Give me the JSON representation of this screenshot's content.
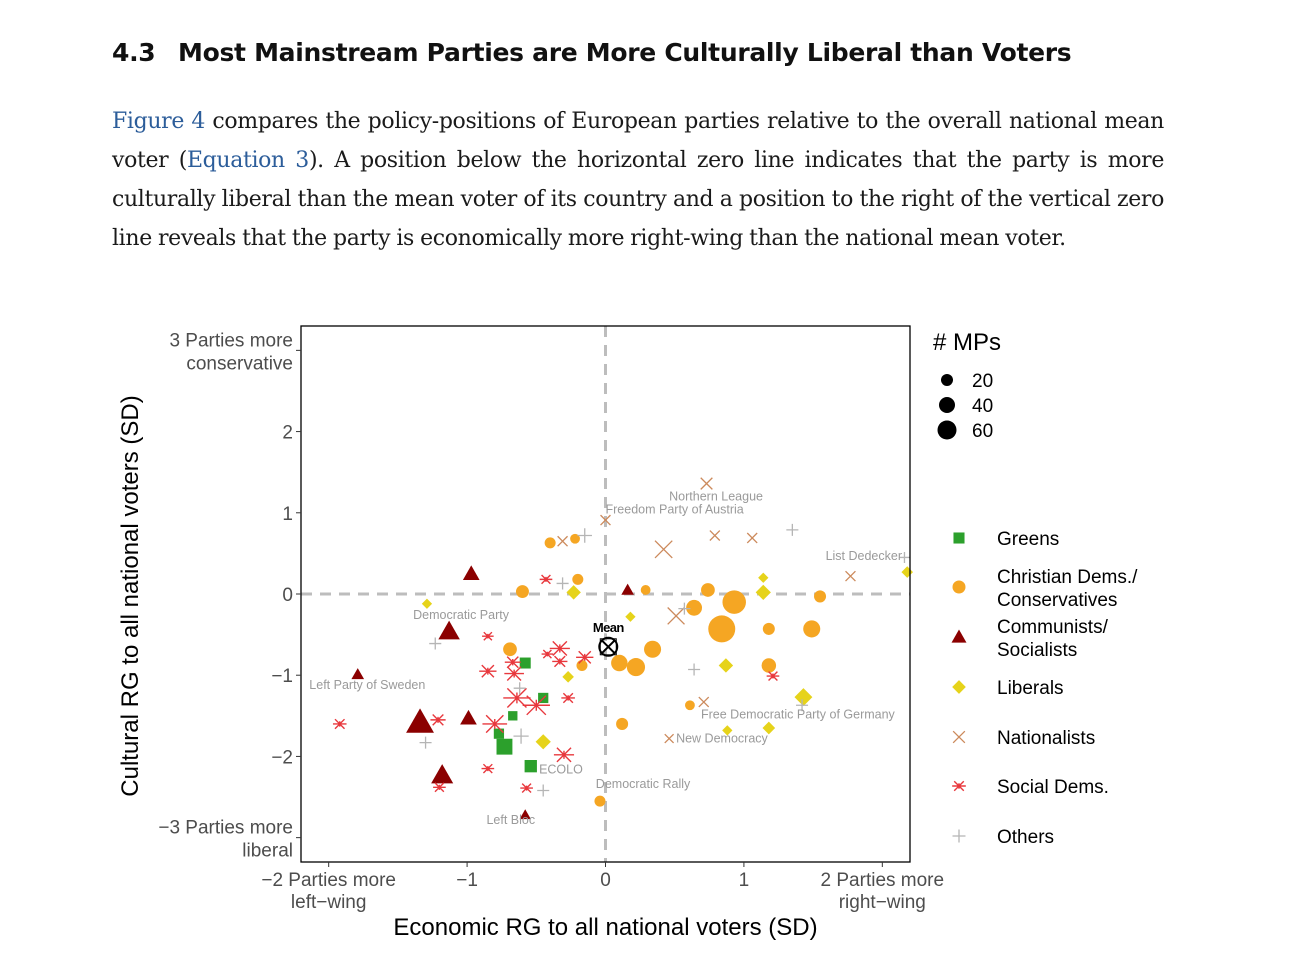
{
  "section": {
    "number": "4.3",
    "title": "Most Mainstream Parties are More Culturally Liberal than Voters"
  },
  "paragraph": {
    "figure_ref": "Figure 4",
    "part1": " compares the policy-positions of European parties relative to the overall national mean voter (",
    "equation_ref": "Equation 3",
    "part2": "). A position below the horizontal zero line indicates that the party is more culturally liberal than the mean voter of its country and a position to the right of the vertical zero line reveals that the party is economically more right-wing than the national mean voter."
  },
  "chart_data": {
    "type": "scatter",
    "xlabel": "Economic RG to all national voters (SD)",
    "ylabel": "Cultural RG to all national voters (SD)",
    "xlim": [
      -2.2,
      2.2
    ],
    "ylim": [
      -3.3,
      3.3
    ],
    "x_ticks": [
      {
        "value": -2,
        "lines": [
          "−2 Parties more",
          "left−wing"
        ]
      },
      {
        "value": -1,
        "lines": [
          "−1"
        ]
      },
      {
        "value": 0,
        "lines": [
          "0"
        ]
      },
      {
        "value": 1,
        "lines": [
          "1"
        ]
      },
      {
        "value": 2,
        "lines": [
          "2 Parties more",
          "right−wing"
        ]
      }
    ],
    "y_ticks": [
      {
        "value": 3,
        "lines": [
          "3 Parties more",
          "conservative"
        ]
      },
      {
        "value": 2,
        "lines": [
          "2"
        ]
      },
      {
        "value": 1,
        "lines": [
          "1"
        ]
      },
      {
        "value": 0,
        "lines": [
          "0"
        ]
      },
      {
        "value": -1,
        "lines": [
          "−1"
        ]
      },
      {
        "value": -2,
        "lines": [
          "−2"
        ]
      },
      {
        "value": -3,
        "lines": [
          "−3 Parties more",
          "liberal"
        ]
      }
    ],
    "zero_lines": true,
    "grid": false,
    "size_legend": {
      "title": "# MPs",
      "entries": [
        20,
        40,
        60
      ]
    },
    "colors": {
      "Greens": "#2ca02c",
      "Christian Dems./ Conservatives": "#f5a623",
      "Communists/ Socialists": "#8b0000",
      "Liberals": "#e6d31a",
      "Nationalists": "#cc8a5c",
      "Social Dems.": "#e8383d",
      "Others": "#b5b5b5"
    },
    "legend": [
      {
        "family": "Greens",
        "shape": "square"
      },
      {
        "family": "Christian Dems./ Conservatives",
        "shape": "circle"
      },
      {
        "family": "Communists/ Socialists",
        "shape": "triangle"
      },
      {
        "family": "Liberals",
        "shape": "diamond"
      },
      {
        "family": "Nationalists",
        "shape": "cross"
      },
      {
        "family": "Social Dems.",
        "shape": "star"
      },
      {
        "family": "Others",
        "shape": "plus"
      }
    ],
    "mean_label": "Mean",
    "mean_point": [
      0.02,
      -0.65
    ],
    "annotations": [
      {
        "text": "Freedom Party of Austria",
        "x": 0.0,
        "y": 0.99
      },
      {
        "text": "Northern League",
        "x": 0.46,
        "y": 1.15
      },
      {
        "text": "List Dedecker",
        "x": 1.59,
        "y": 0.42
      },
      {
        "text": "Democratic Party",
        "x": -1.39,
        "y": -0.31
      },
      {
        "text": "Left Party of Sweden",
        "x": -2.14,
        "y": -1.17
      },
      {
        "text": "Free Democratic Party of Germany",
        "x": 0.69,
        "y": -1.53
      },
      {
        "text": "New Democracy",
        "x": 0.51,
        "y": -1.83
      },
      {
        "text": "ECOLO",
        "x": -0.48,
        "y": -2.21
      },
      {
        "text": "Democratic Rally",
        "x": -0.07,
        "y": -2.39
      },
      {
        "text": "Left Bloc",
        "x": -0.86,
        "y": -2.83
      }
    ],
    "points": [
      {
        "family": "Greens",
        "x": -0.58,
        "y": -0.85,
        "mps": 10
      },
      {
        "family": "Greens",
        "x": -0.45,
        "y": -1.28,
        "mps": 8
      },
      {
        "family": "Greens",
        "x": -0.77,
        "y": -1.72,
        "mps": 8
      },
      {
        "family": "Greens",
        "x": -0.73,
        "y": -1.88,
        "mps": 28
      },
      {
        "family": "Greens",
        "x": -0.54,
        "y": -2.12,
        "mps": 14
      },
      {
        "family": "Greens",
        "x": -0.67,
        "y": -1.5,
        "mps": 6
      },
      {
        "family": "Christian Dems./ Conservatives",
        "x": -0.4,
        "y": 0.63,
        "mps": 6
      },
      {
        "family": "Christian Dems./ Conservatives",
        "x": -0.2,
        "y": 0.18,
        "mps": 6
      },
      {
        "family": "Christian Dems./ Conservatives",
        "x": -0.6,
        "y": 0.03,
        "mps": 10
      },
      {
        "family": "Christian Dems./ Conservatives",
        "x": -0.69,
        "y": -0.68,
        "mps": 12
      },
      {
        "family": "Christian Dems./ Conservatives",
        "x": -0.17,
        "y": -0.88,
        "mps": 6
      },
      {
        "family": "Christian Dems./ Conservatives",
        "x": 0.1,
        "y": -0.85,
        "mps": 20
      },
      {
        "family": "Christian Dems./ Conservatives",
        "x": 0.22,
        "y": -0.9,
        "mps": 26
      },
      {
        "family": "Christian Dems./ Conservatives",
        "x": 0.34,
        "y": -0.68,
        "mps": 22
      },
      {
        "family": "Christian Dems./ Conservatives",
        "x": 0.64,
        "y": -0.17,
        "mps": 18
      },
      {
        "family": "Christian Dems./ Conservatives",
        "x": 0.74,
        "y": 0.05,
        "mps": 12
      },
      {
        "family": "Christian Dems./ Conservatives",
        "x": 0.93,
        "y": -0.1,
        "mps": 50
      },
      {
        "family": "Christian Dems./ Conservatives",
        "x": 0.84,
        "y": -0.43,
        "mps": 70
      },
      {
        "family": "Christian Dems./ Conservatives",
        "x": 1.18,
        "y": -0.43,
        "mps": 8
      },
      {
        "family": "Christian Dems./ Conservatives",
        "x": 1.18,
        "y": -0.88,
        "mps": 14
      },
      {
        "family": "Christian Dems./ Conservatives",
        "x": 1.49,
        "y": -0.43,
        "mps": 22
      },
      {
        "family": "Christian Dems./ Conservatives",
        "x": 1.55,
        "y": -0.03,
        "mps": 8
      },
      {
        "family": "Christian Dems./ Conservatives",
        "x": 0.12,
        "y": -1.6,
        "mps": 8
      },
      {
        "family": "Christian Dems./ Conservatives",
        "x": 0.61,
        "y": -1.37,
        "mps": 4
      },
      {
        "family": "Christian Dems./ Conservatives",
        "x": -0.04,
        "y": -2.55,
        "mps": 6
      },
      {
        "family": "Christian Dems./ Conservatives",
        "x": 0.29,
        "y": 0.05,
        "mps": 4
      },
      {
        "family": "Christian Dems./ Conservatives",
        "x": -0.22,
        "y": 0.68,
        "mps": 4
      },
      {
        "family": "Communists/ Socialists",
        "x": -0.97,
        "y": 0.25,
        "mps": 14
      },
      {
        "family": "Communists/ Socialists",
        "x": -1.13,
        "y": -0.46,
        "mps": 28
      },
      {
        "family": "Communists/ Socialists",
        "x": -1.79,
        "y": -0.99,
        "mps": 6
      },
      {
        "family": "Communists/ Socialists",
        "x": -1.34,
        "y": -1.58,
        "mps": 54
      },
      {
        "family": "Communists/ Socialists",
        "x": -0.99,
        "y": -1.53,
        "mps": 14
      },
      {
        "family": "Communists/ Socialists",
        "x": -1.18,
        "y": -2.23,
        "mps": 30
      },
      {
        "family": "Communists/ Socialists",
        "x": 0.16,
        "y": 0.05,
        "mps": 6
      },
      {
        "family": "Communists/ Socialists",
        "x": -0.58,
        "y": -2.72,
        "mps": 4
      },
      {
        "family": "Liberals",
        "x": -0.23,
        "y": 0.02,
        "mps": 12
      },
      {
        "family": "Liberals",
        "x": -0.45,
        "y": -1.82,
        "mps": 14
      },
      {
        "family": "Liberals",
        "x": -0.27,
        "y": -1.02,
        "mps": 6
      },
      {
        "family": "Liberals",
        "x": 0.87,
        "y": -0.88,
        "mps": 12
      },
      {
        "family": "Liberals",
        "x": 1.14,
        "y": 0.02,
        "mps": 14
      },
      {
        "family": "Liberals",
        "x": 1.14,
        "y": 0.2,
        "mps": 4
      },
      {
        "family": "Liberals",
        "x": 1.43,
        "y": -1.27,
        "mps": 22
      },
      {
        "family": "Liberals",
        "x": 2.18,
        "y": 0.27,
        "mps": 6
      },
      {
        "family": "Liberals",
        "x": -1.29,
        "y": -0.12,
        "mps": 4
      },
      {
        "family": "Liberals",
        "x": 0.18,
        "y": -0.28,
        "mps": 4
      },
      {
        "family": "Liberals",
        "x": 0.88,
        "y": -1.68,
        "mps": 4
      },
      {
        "family": "Liberals",
        "x": 1.18,
        "y": -1.65,
        "mps": 8
      },
      {
        "family": "Nationalists",
        "x": 0.0,
        "y": 0.91,
        "mps": 6
      },
      {
        "family": "Nationalists",
        "x": 0.73,
        "y": 1.36,
        "mps": 10
      },
      {
        "family": "Nationalists",
        "x": 0.42,
        "y": 0.55,
        "mps": 30
      },
      {
        "family": "Nationalists",
        "x": 0.51,
        "y": -0.27,
        "mps": 28
      },
      {
        "family": "Nationalists",
        "x": 0.79,
        "y": 0.72,
        "mps": 6
      },
      {
        "family": "Nationalists",
        "x": 1.06,
        "y": 0.69,
        "mps": 6
      },
      {
        "family": "Nationalists",
        "x": 1.77,
        "y": 0.22,
        "mps": 6
      },
      {
        "family": "Nationalists",
        "x": -0.31,
        "y": 0.65,
        "mps": 6
      },
      {
        "family": "Nationalists",
        "x": 0.71,
        "y": -1.33,
        "mps": 6
      },
      {
        "family": "Nationalists",
        "x": 0.46,
        "y": -1.78,
        "mps": 4
      },
      {
        "family": "Social Dems.",
        "x": -1.92,
        "y": -1.6,
        "mps": 10
      },
      {
        "family": "Social Dems.",
        "x": -1.21,
        "y": -1.55,
        "mps": 14
      },
      {
        "family": "Social Dems.",
        "x": -0.85,
        "y": -0.95,
        "mps": 20
      },
      {
        "family": "Social Dems.",
        "x": -0.85,
        "y": -2.15,
        "mps": 8
      },
      {
        "family": "Social Dems.",
        "x": -0.67,
        "y": -0.84,
        "mps": 16
      },
      {
        "family": "Social Dems.",
        "x": -0.66,
        "y": -0.98,
        "mps": 28
      },
      {
        "family": "Social Dems.",
        "x": -0.64,
        "y": -1.28,
        "mps": 64
      },
      {
        "family": "Social Dems.",
        "x": -0.8,
        "y": -1.6,
        "mps": 50
      },
      {
        "family": "Social Dems.",
        "x": -0.5,
        "y": -1.37,
        "mps": 64
      },
      {
        "family": "Social Dems.",
        "x": -0.33,
        "y": -0.67,
        "mps": 30
      },
      {
        "family": "Social Dems.",
        "x": -0.33,
        "y": -0.83,
        "mps": 14
      },
      {
        "family": "Social Dems.",
        "x": -0.15,
        "y": -0.78,
        "mps": 20
      },
      {
        "family": "Social Dems.",
        "x": -0.27,
        "y": -1.28,
        "mps": 10
      },
      {
        "family": "Social Dems.",
        "x": -0.3,
        "y": -1.98,
        "mps": 30
      },
      {
        "family": "Social Dems.",
        "x": -0.42,
        "y": -0.74,
        "mps": 6
      },
      {
        "family": "Social Dems.",
        "x": -0.85,
        "y": -0.52,
        "mps": 6
      },
      {
        "family": "Social Dems.",
        "x": -1.2,
        "y": -2.38,
        "mps": 8
      },
      {
        "family": "Social Dems.",
        "x": -0.57,
        "y": -2.39,
        "mps": 8
      },
      {
        "family": "Social Dems.",
        "x": -0.43,
        "y": 0.18,
        "mps": 8
      },
      {
        "family": "Social Dems.",
        "x": 1.21,
        "y": -1.01,
        "mps": 8
      },
      {
        "family": "Others",
        "x": -0.15,
        "y": 0.72,
        "mps": 14
      },
      {
        "family": "Others",
        "x": -0.31,
        "y": 0.13,
        "mps": 8
      },
      {
        "family": "Others",
        "x": -1.23,
        "y": -0.61,
        "mps": 8
      },
      {
        "family": "Others",
        "x": -1.3,
        "y": -1.83,
        "mps": 8
      },
      {
        "family": "Others",
        "x": -0.62,
        "y": -1.16,
        "mps": 8
      },
      {
        "family": "Others",
        "x": -0.61,
        "y": -1.75,
        "mps": 16
      },
      {
        "family": "Others",
        "x": -0.45,
        "y": -2.42,
        "mps": 8
      },
      {
        "family": "Others",
        "x": 0.57,
        "y": -0.18,
        "mps": 8
      },
      {
        "family": "Others",
        "x": 0.64,
        "y": -0.93,
        "mps": 8
      },
      {
        "family": "Others",
        "x": 1.35,
        "y": 0.79,
        "mps": 8
      },
      {
        "family": "Others",
        "x": 2.16,
        "y": 0.45,
        "mps": 6
      },
      {
        "family": "Others",
        "x": 1.42,
        "y": -1.37,
        "mps": 8
      }
    ]
  }
}
